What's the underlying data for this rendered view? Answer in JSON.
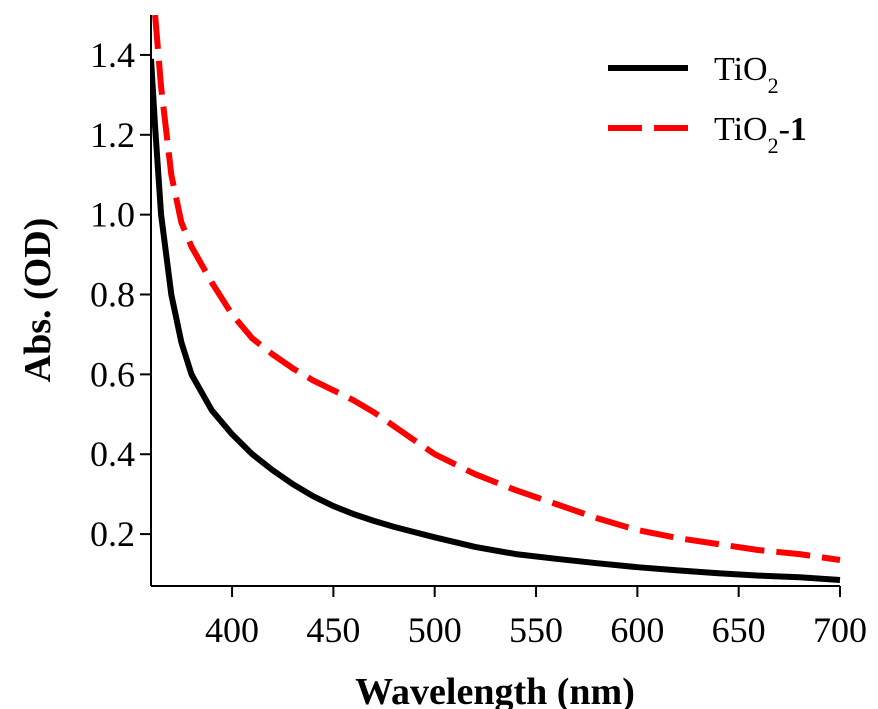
{
  "chart_data": {
    "type": "line",
    "title": "",
    "xlabel": "Wavelength (nm)",
    "ylabel": "Abs. (OD)",
    "xlim": [
      360,
      700
    ],
    "ylim": [
      0.07,
      1.5
    ],
    "xticks": [
      400,
      450,
      500,
      550,
      600,
      650,
      700
    ],
    "xtick_labels": [
      "400",
      "450",
      "500",
      "550",
      "600",
      "650",
      "700"
    ],
    "yticks": [
      0.2,
      0.4,
      0.6,
      0.8,
      1.0,
      1.2,
      1.4
    ],
    "ytick_labels": [
      "0.2",
      "0.4",
      "0.6",
      "0.8",
      "1.0",
      "1.2",
      "1.4"
    ],
    "grid": false,
    "legend_position": "top-right",
    "series": [
      {
        "name": "TiO",
        "name_sub": "2",
        "name_suffix": "",
        "color": "#000000",
        "style": "solid",
        "x": [
          360,
          362,
          365,
          370,
          375,
          380,
          390,
          400,
          410,
          420,
          430,
          440,
          450,
          460,
          470,
          480,
          490,
          500,
          520,
          540,
          560,
          580,
          600,
          620,
          640,
          660,
          680,
          700
        ],
        "values": [
          1.39,
          1.22,
          1.0,
          0.8,
          0.68,
          0.6,
          0.51,
          0.45,
          0.4,
          0.36,
          0.325,
          0.295,
          0.27,
          0.25,
          0.233,
          0.218,
          0.205,
          0.192,
          0.168,
          0.15,
          0.138,
          0.127,
          0.117,
          0.109,
          0.102,
          0.096,
          0.092,
          0.085
        ]
      },
      {
        "name": "TiO",
        "name_sub": "2",
        "name_suffix": "-1",
        "color": "#ff0000",
        "style": "dashed",
        "x": [
          362,
          365,
          370,
          375,
          380,
          390,
          400,
          410,
          420,
          430,
          440,
          450,
          460,
          470,
          480,
          490,
          500,
          520,
          540,
          560,
          580,
          600,
          620,
          640,
          660,
          680,
          700
        ],
        "values": [
          1.5,
          1.32,
          1.1,
          0.98,
          0.92,
          0.83,
          0.75,
          0.69,
          0.65,
          0.615,
          0.585,
          0.56,
          0.535,
          0.505,
          0.47,
          0.435,
          0.4,
          0.35,
          0.31,
          0.275,
          0.24,
          0.21,
          0.19,
          0.175,
          0.16,
          0.15,
          0.135
        ]
      }
    ]
  }
}
